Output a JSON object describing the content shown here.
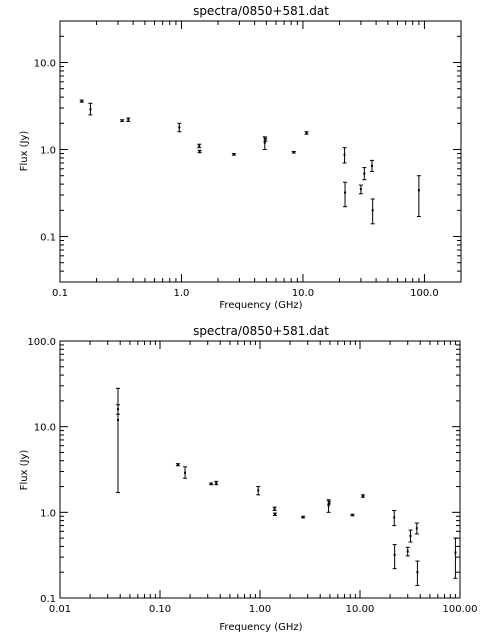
{
  "chart_data": [
    {
      "type": "scatter",
      "title": "spectra/0850+581.dat",
      "xlabel": "Frequency (GHz)",
      "ylabel": "Flux (Jy)",
      "xscale": "log",
      "yscale": "log",
      "xlim": [
        0.1,
        200
      ],
      "ylim": [
        0.03,
        30
      ],
      "xticks": [
        0.1,
        1.0,
        10.0,
        100.0
      ],
      "xtick_labels": [
        "0.1",
        "1.0",
        "10.0",
        "100.0"
      ],
      "yticks": [
        0.1,
        1.0,
        10.0
      ],
      "ytick_labels": [
        "0.1",
        "1.0",
        "10.0"
      ],
      "grid": false,
      "points": [
        {
          "x": 0.151,
          "y": 3.6,
          "ylo": 3.5,
          "yhi": 3.7
        },
        {
          "x": 0.178,
          "y": 2.9,
          "ylo": 2.5,
          "yhi": 3.4
        },
        {
          "x": 0.325,
          "y": 2.15,
          "ylo": 2.1,
          "yhi": 2.2
        },
        {
          "x": 0.365,
          "y": 2.2,
          "ylo": 2.1,
          "yhi": 2.3
        },
        {
          "x": 0.96,
          "y": 1.8,
          "ylo": 1.6,
          "yhi": 2.0
        },
        {
          "x": 1.4,
          "y": 1.1,
          "ylo": 1.05,
          "yhi": 1.15
        },
        {
          "x": 1.41,
          "y": 0.95,
          "ylo": 0.92,
          "yhi": 0.98
        },
        {
          "x": 2.7,
          "y": 0.88,
          "ylo": 0.86,
          "yhi": 0.9
        },
        {
          "x": 4.85,
          "y": 1.2,
          "ylo": 1.0,
          "yhi": 1.4
        },
        {
          "x": 4.9,
          "y": 1.3,
          "ylo": 1.25,
          "yhi": 1.35
        },
        {
          "x": 8.4,
          "y": 0.93,
          "ylo": 0.91,
          "yhi": 0.95
        },
        {
          "x": 10.7,
          "y": 1.55,
          "ylo": 1.5,
          "yhi": 1.6
        },
        {
          "x": 22.0,
          "y": 0.87,
          "ylo": 0.7,
          "yhi": 1.05
        },
        {
          "x": 22.2,
          "y": 0.32,
          "ylo": 0.22,
          "yhi": 0.42
        },
        {
          "x": 30.0,
          "y": 0.35,
          "ylo": 0.31,
          "yhi": 0.39
        },
        {
          "x": 32.0,
          "y": 0.53,
          "ylo": 0.45,
          "yhi": 0.62
        },
        {
          "x": 37.0,
          "y": 0.65,
          "ylo": 0.56,
          "yhi": 0.75
        },
        {
          "x": 37.5,
          "y": 0.2,
          "ylo": 0.14,
          "yhi": 0.27
        },
        {
          "x": 90.0,
          "y": 0.34,
          "ylo": 0.17,
          "yhi": 0.5
        }
      ]
    },
    {
      "type": "scatter",
      "title": "spectra/0850+581.dat",
      "xlabel": "Frequency (GHz)",
      "ylabel": "Flux (Jy)",
      "xscale": "log",
      "yscale": "log",
      "xlim": [
        0.01,
        100
      ],
      "ylim": [
        0.1,
        100
      ],
      "xticks": [
        0.01,
        0.1,
        1.0,
        10.0,
        100.0
      ],
      "xtick_labels": [
        "0.01",
        "0.10",
        "1.00",
        "10.00",
        "100.00"
      ],
      "yticks": [
        0.1,
        1.0,
        10.0,
        100.0
      ],
      "ytick_labels": [
        "0.1",
        "1.0",
        "10.0",
        "100.0"
      ],
      "grid": false,
      "points": [
        {
          "x": 0.038,
          "y": 12.0,
          "ylo": 1.7,
          "yhi": 28.0
        },
        {
          "x": 0.038,
          "y": 16.0,
          "ylo": 14.0,
          "yhi": 18.0
        },
        {
          "x": 0.151,
          "y": 3.6,
          "ylo": 3.5,
          "yhi": 3.7
        },
        {
          "x": 0.178,
          "y": 2.9,
          "ylo": 2.5,
          "yhi": 3.4
        },
        {
          "x": 0.325,
          "y": 2.15,
          "ylo": 2.1,
          "yhi": 2.2
        },
        {
          "x": 0.365,
          "y": 2.2,
          "ylo": 2.1,
          "yhi": 2.3
        },
        {
          "x": 0.96,
          "y": 1.8,
          "ylo": 1.6,
          "yhi": 2.0
        },
        {
          "x": 1.4,
          "y": 1.1,
          "ylo": 1.05,
          "yhi": 1.15
        },
        {
          "x": 1.41,
          "y": 0.95,
          "ylo": 0.92,
          "yhi": 0.98
        },
        {
          "x": 2.7,
          "y": 0.88,
          "ylo": 0.86,
          "yhi": 0.9
        },
        {
          "x": 4.85,
          "y": 1.2,
          "ylo": 1.0,
          "yhi": 1.4
        },
        {
          "x": 4.9,
          "y": 1.3,
          "ylo": 1.25,
          "yhi": 1.35
        },
        {
          "x": 8.4,
          "y": 0.93,
          "ylo": 0.91,
          "yhi": 0.95
        },
        {
          "x": 10.7,
          "y": 1.55,
          "ylo": 1.5,
          "yhi": 1.6
        },
        {
          "x": 22.0,
          "y": 0.87,
          "ylo": 0.7,
          "yhi": 1.05
        },
        {
          "x": 22.2,
          "y": 0.32,
          "ylo": 0.22,
          "yhi": 0.42
        },
        {
          "x": 30.0,
          "y": 0.35,
          "ylo": 0.31,
          "yhi": 0.39
        },
        {
          "x": 32.0,
          "y": 0.53,
          "ylo": 0.45,
          "yhi": 0.62
        },
        {
          "x": 37.0,
          "y": 0.65,
          "ylo": 0.56,
          "yhi": 0.75
        },
        {
          "x": 37.5,
          "y": 0.2,
          "ylo": 0.14,
          "yhi": 0.27
        },
        {
          "x": 90.0,
          "y": 0.34,
          "ylo": 0.17,
          "yhi": 0.5
        }
      ]
    }
  ]
}
